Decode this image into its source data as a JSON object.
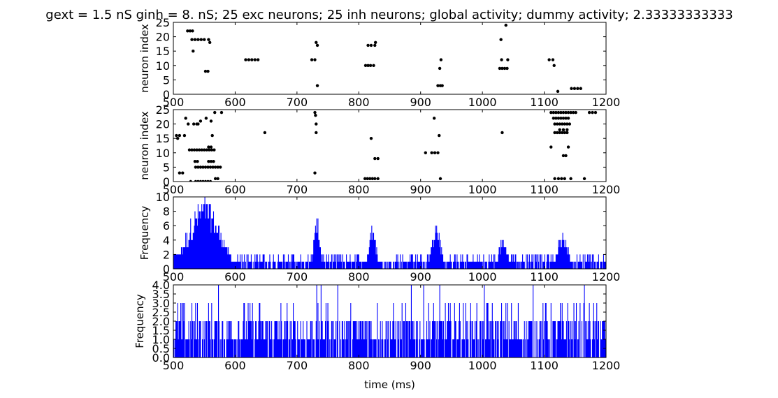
{
  "figure_title": "gext = 1.5 nS ginh = 8. nS; 25 exc neurons; 25 inh neurons; global activity; dummy activity; 2.33333333333",
  "colors": {
    "raster": "#000000",
    "histogram": "#0000ff",
    "axes": "#000000"
  },
  "chart_data": [
    {
      "type": "scatter",
      "panel": "excitatory raster",
      "ylabel": "neuron index",
      "xlabel": "",
      "xlim": [
        500,
        1200
      ],
      "ylim": [
        0,
        25
      ],
      "xticks": [
        500,
        600,
        700,
        800,
        900,
        1000,
        1100,
        1200
      ],
      "yticks": [
        0,
        5,
        10,
        15,
        20,
        25
      ],
      "points": [
        [
          523,
          22
        ],
        [
          527,
          22
        ],
        [
          531,
          22
        ],
        [
          532,
          15
        ],
        [
          530,
          19
        ],
        [
          535,
          19
        ],
        [
          540,
          19
        ],
        [
          545,
          19
        ],
        [
          550,
          19
        ],
        [
          557,
          19
        ],
        [
          559,
          18
        ],
        [
          552,
          8
        ],
        [
          556,
          8
        ],
        [
          617,
          12
        ],
        [
          622,
          12
        ],
        [
          627,
          12
        ],
        [
          632,
          12
        ],
        [
          637,
          12
        ],
        [
          724,
          12
        ],
        [
          729,
          12
        ],
        [
          731,
          18
        ],
        [
          733,
          17
        ],
        [
          733,
          3
        ],
        [
          811,
          10
        ],
        [
          815,
          10
        ],
        [
          819,
          10
        ],
        [
          824,
          10
        ],
        [
          815,
          17
        ],
        [
          820,
          17
        ],
        [
          826,
          17
        ],
        [
          827,
          18
        ],
        [
          928,
          3
        ],
        [
          932,
          3
        ],
        [
          935,
          3
        ],
        [
          931,
          9
        ],
        [
          933,
          12
        ],
        [
          1028,
          9
        ],
        [
          1032,
          9
        ],
        [
          1036,
          9
        ],
        [
          1040,
          9
        ],
        [
          1031,
          12
        ],
        [
          1041,
          12
        ],
        [
          1030,
          19
        ],
        [
          1038,
          24
        ],
        [
          1108,
          12
        ],
        [
          1114,
          12
        ],
        [
          1116,
          10
        ],
        [
          1122,
          1
        ],
        [
          1144,
          2
        ],
        [
          1149,
          2
        ],
        [
          1154,
          2
        ],
        [
          1159,
          2
        ]
      ]
    },
    {
      "type": "scatter",
      "panel": "inhibitory raster",
      "ylabel": "neuron index",
      "xlabel": "",
      "xlim": [
        500,
        1200
      ],
      "ylim": [
        0,
        25
      ],
      "xticks": [
        500,
        600,
        700,
        800,
        900,
        1000,
        1100,
        1200
      ],
      "yticks": [
        0,
        5,
        10,
        15,
        20,
        25
      ],
      "points": [
        [
          505,
          16
        ],
        [
          510,
          16
        ],
        [
          507,
          15
        ],
        [
          518,
          16
        ],
        [
          520,
          22
        ],
        [
          510,
          3
        ],
        [
          515,
          3
        ],
        [
          524,
          20
        ],
        [
          533,
          20
        ],
        [
          538,
          20
        ],
        [
          544,
          21
        ],
        [
          540,
          20
        ],
        [
          553,
          22
        ],
        [
          561,
          21
        ],
        [
          563,
          16
        ],
        [
          567,
          24
        ],
        [
          578,
          24
        ],
        [
          526,
          11
        ],
        [
          530,
          11
        ],
        [
          534,
          11
        ],
        [
          538,
          11
        ],
        [
          542,
          11
        ],
        [
          546,
          11
        ],
        [
          550,
          11
        ],
        [
          554,
          11
        ],
        [
          558,
          11
        ],
        [
          562,
          11
        ],
        [
          566,
          11
        ],
        [
          557,
          12
        ],
        [
          561,
          12
        ],
        [
          535,
          7
        ],
        [
          539,
          7
        ],
        [
          557,
          7
        ],
        [
          561,
          7
        ],
        [
          565,
          7
        ],
        [
          536,
          5
        ],
        [
          540,
          5
        ],
        [
          544,
          5
        ],
        [
          548,
          5
        ],
        [
          552,
          5
        ],
        [
          556,
          5
        ],
        [
          560,
          5
        ],
        [
          564,
          5
        ],
        [
          568,
          5
        ],
        [
          572,
          5
        ],
        [
          576,
          5
        ],
        [
          528,
          0
        ],
        [
          536,
          0
        ],
        [
          540,
          0
        ],
        [
          544,
          0
        ],
        [
          548,
          0
        ],
        [
          552,
          0
        ],
        [
          556,
          0
        ],
        [
          560,
          0
        ],
        [
          568,
          1
        ],
        [
          572,
          1
        ],
        [
          648,
          17
        ],
        [
          729,
          24
        ],
        [
          730,
          23
        ],
        [
          731,
          20
        ],
        [
          731,
          17
        ],
        [
          729,
          3
        ],
        [
          810,
          1
        ],
        [
          814,
          1
        ],
        [
          818,
          1
        ],
        [
          822,
          1
        ],
        [
          826,
          1
        ],
        [
          831,
          1
        ],
        [
          820,
          15
        ],
        [
          826,
          8
        ],
        [
          831,
          8
        ],
        [
          908,
          10
        ],
        [
          918,
          10
        ],
        [
          923,
          10
        ],
        [
          928,
          10
        ],
        [
          922,
          22
        ],
        [
          930,
          16
        ],
        [
          932,
          1
        ],
        [
          1032,
          17
        ],
        [
          1111,
          24
        ],
        [
          1115,
          24
        ],
        [
          1119,
          24
        ],
        [
          1123,
          24
        ],
        [
          1127,
          24
        ],
        [
          1131,
          24
        ],
        [
          1135,
          24
        ],
        [
          1139,
          24
        ],
        [
          1143,
          24
        ],
        [
          1147,
          24
        ],
        [
          1151,
          24
        ],
        [
          1173,
          24
        ],
        [
          1178,
          24
        ],
        [
          1183,
          24
        ],
        [
          1115,
          22
        ],
        [
          1119,
          22
        ],
        [
          1123,
          22
        ],
        [
          1127,
          22
        ],
        [
          1131,
          22
        ],
        [
          1135,
          22
        ],
        [
          1139,
          22
        ],
        [
          1117,
          20
        ],
        [
          1121,
          20
        ],
        [
          1125,
          20
        ],
        [
          1129,
          20
        ],
        [
          1133,
          20
        ],
        [
          1137,
          20
        ],
        [
          1141,
          20
        ],
        [
          1117,
          17
        ],
        [
          1121,
          17
        ],
        [
          1125,
          17
        ],
        [
          1129,
          17
        ],
        [
          1133,
          17
        ],
        [
          1137,
          17
        ],
        [
          1125,
          18
        ],
        [
          1131,
          18
        ],
        [
          1137,
          18
        ],
        [
          1111,
          12
        ],
        [
          1139,
          12
        ],
        [
          1131,
          9
        ],
        [
          1135,
          9
        ],
        [
          1117,
          1
        ],
        [
          1123,
          1
        ],
        [
          1128,
          1
        ],
        [
          1133,
          1
        ],
        [
          1143,
          1
        ],
        [
          1165,
          1
        ]
      ]
    },
    {
      "type": "bar",
      "panel": "global activity",
      "ylabel": "Frequency",
      "xlabel": "",
      "xlim": [
        500,
        1200
      ],
      "ylim": [
        0,
        10
      ],
      "xticks": [
        500,
        600,
        700,
        800,
        900,
        1000,
        1100,
        1200
      ],
      "yticks": [
        0,
        2,
        4,
        6,
        8,
        10
      ],
      "bursts": [
        {
          "center": 550,
          "width": 35,
          "peak": 10
        },
        {
          "center": 732,
          "width": 6,
          "peak": 8
        },
        {
          "center": 822,
          "width": 8,
          "peak": 6
        },
        {
          "center": 925,
          "width": 10,
          "peak": 7
        },
        {
          "center": 1033,
          "width": 9,
          "peak": 5
        },
        {
          "center": 1130,
          "width": 12,
          "peak": 5
        }
      ],
      "baseline": [
        0,
        1,
        2
      ],
      "bin_ms": 1
    },
    {
      "type": "bar",
      "panel": "dummy activity",
      "ylabel": "Frequency",
      "xlabel": "time (ms)",
      "xlim": [
        500,
        1200
      ],
      "ylim": [
        0,
        4
      ],
      "xticks": [
        500,
        600,
        700,
        800,
        900,
        1000,
        1100,
        1200
      ],
      "yticks": [
        0.0,
        0.5,
        1.0,
        1.5,
        2.0,
        2.5,
        3.0,
        3.5,
        4.0
      ],
      "values_range": [
        0,
        4
      ],
      "bin_ms": 1
    }
  ]
}
